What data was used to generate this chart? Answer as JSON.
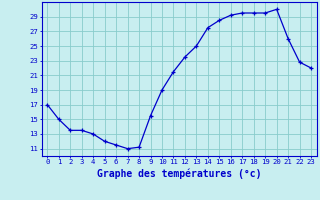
{
  "x": [
    0,
    1,
    2,
    3,
    4,
    5,
    6,
    7,
    8,
    9,
    10,
    11,
    12,
    13,
    14,
    15,
    16,
    17,
    18,
    19,
    20,
    21,
    22,
    23
  ],
  "y": [
    17,
    15,
    13.5,
    13.5,
    13,
    12,
    11.5,
    11,
    11.2,
    15.5,
    19,
    21.5,
    23.5,
    25,
    27.5,
    28.5,
    29.2,
    29.5,
    29.5,
    29.5,
    30,
    26,
    22.8,
    22
  ],
  "xlabel": "Graphe des températures (°c)",
  "ylim": [
    10,
    31
  ],
  "xlim": [
    -0.5,
    23.5
  ],
  "yticks": [
    11,
    13,
    15,
    17,
    19,
    21,
    23,
    25,
    27,
    29
  ],
  "xticks": [
    0,
    1,
    2,
    3,
    4,
    5,
    6,
    7,
    8,
    9,
    10,
    11,
    12,
    13,
    14,
    15,
    16,
    17,
    18,
    19,
    20,
    21,
    22,
    23
  ],
  "line_color": "#0000cc",
  "marker": "+",
  "bg_color": "#c8eef0",
  "grid_color": "#88cccc",
  "label_color": "#0000cc",
  "tick_fontsize": 5.2,
  "xlabel_fontsize": 7.0,
  "marker_size": 3.5,
  "line_width": 0.9
}
